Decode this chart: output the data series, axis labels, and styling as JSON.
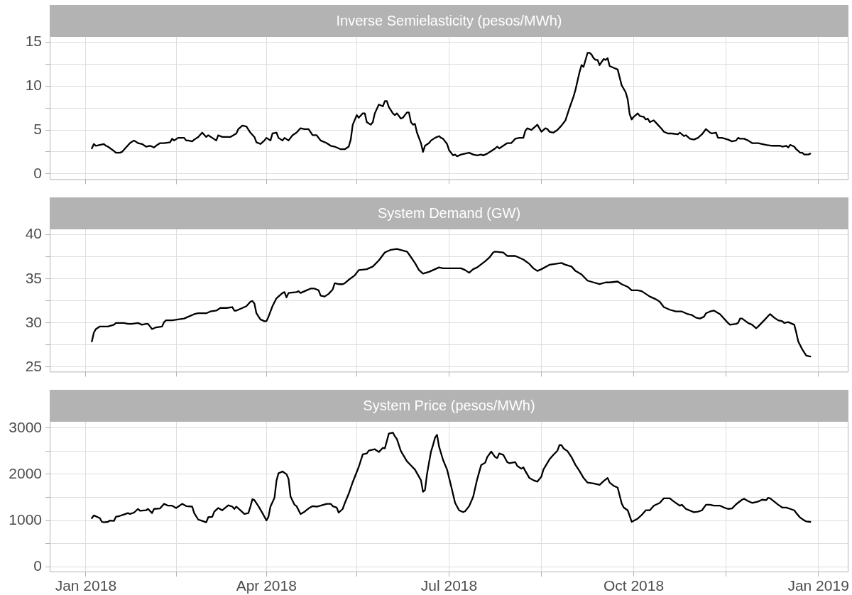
{
  "chart_data": [
    {
      "type": "line",
      "title": "Inverse Semielasticity (pesos/MWh)",
      "tick_labels": "y",
      "grid": true,
      "xlim": [
        "2017-12-14",
        "2019-01-16"
      ],
      "xticks": [
        {
          "value": "2018-01-01",
          "label": null
        },
        {
          "value": "2018-02-15",
          "label": null
        },
        {
          "value": "2018-04-01",
          "label": null
        },
        {
          "value": "2018-05-16",
          "label": null
        },
        {
          "value": "2018-07-01",
          "label": null
        },
        {
          "value": "2018-08-16",
          "label": null
        },
        {
          "value": "2018-10-01",
          "label": null
        },
        {
          "value": "2018-11-16",
          "label": null
        },
        {
          "value": "2019-01-01",
          "label": null
        }
      ],
      "ylim": [
        -0.7,
        15.7
      ],
      "yticks": [
        0,
        {
          "value": 2.5,
          "label": null
        },
        5,
        {
          "value": 7.5,
          "label": null
        },
        10,
        {
          "value": 12.5,
          "label": null
        },
        15
      ],
      "x": [
        "2018-01-04",
        "2018-01-05",
        "2018-01-06",
        "2018-01-08",
        "2018-01-10",
        "2018-01-11",
        "2018-01-12",
        "2018-01-15",
        "2018-01-16",
        "2018-01-18",
        "2018-01-19",
        "2018-01-21",
        "2018-01-23",
        "2018-01-25",
        "2018-01-27",
        "2018-01-29",
        "2018-01-31",
        "2018-02-02",
        "2018-02-04",
        "2018-02-05",
        "2018-02-07",
        "2018-02-09",
        "2018-02-12",
        "2018-02-13",
        "2018-02-14",
        "2018-02-16",
        "2018-02-19",
        "2018-02-20",
        "2018-02-21",
        "2018-02-23",
        "2018-02-24",
        "2018-02-26",
        "2018-02-28",
        "2018-03-02",
        "2018-03-03",
        "2018-03-05",
        "2018-03-07",
        "2018-03-08",
        "2018-03-10",
        "2018-03-12",
        "2018-03-14",
        "2018-03-17",
        "2018-03-18",
        "2018-03-20",
        "2018-03-22",
        "2018-03-24",
        "2018-03-26",
        "2018-03-27",
        "2018-03-29",
        "2018-03-31",
        "2018-04-01",
        "2018-04-03",
        "2018-04-04",
        "2018-04-06",
        "2018-04-07",
        "2018-04-09",
        "2018-04-10",
        "2018-04-12",
        "2018-04-14",
        "2018-04-16",
        "2018-04-18",
        "2018-04-20",
        "2018-04-22",
        "2018-04-24",
        "2018-04-26",
        "2018-04-28",
        "2018-05-01",
        "2018-05-03",
        "2018-05-05",
        "2018-05-08",
        "2018-05-10",
        "2018-05-12",
        "2018-05-13",
        "2018-05-14",
        "2018-05-16",
        "2018-05-17",
        "2018-05-19",
        "2018-05-20",
        "2018-05-21",
        "2018-05-23",
        "2018-05-24",
        "2018-05-25",
        "2018-05-27",
        "2018-05-29",
        "2018-05-30",
        "2018-05-31",
        "2018-06-01",
        "2018-06-03",
        "2018-06-04",
        "2018-06-05",
        "2018-06-07",
        "2018-06-08",
        "2018-06-10",
        "2018-06-11",
        "2018-06-12",
        "2018-06-13",
        "2018-06-14",
        "2018-06-15",
        "2018-06-17",
        "2018-06-18",
        "2018-06-19",
        "2018-06-21",
        "2018-06-22",
        "2018-06-24",
        "2018-06-26",
        "2018-06-27",
        "2018-06-28",
        "2018-06-30",
        "2018-07-01",
        "2018-07-03",
        "2018-07-04",
        "2018-07-05",
        "2018-07-07",
        "2018-07-09",
        "2018-07-11",
        "2018-07-13",
        "2018-07-15",
        "2018-07-17",
        "2018-07-18",
        "2018-07-20",
        "2018-07-22",
        "2018-07-24",
        "2018-07-25",
        "2018-07-26",
        "2018-07-28",
        "2018-07-30",
        "2018-08-01",
        "2018-08-03",
        "2018-08-05",
        "2018-08-07",
        "2018-08-08",
        "2018-08-09",
        "2018-08-11",
        "2018-08-13",
        "2018-08-14",
        "2018-08-15",
        "2018-08-16",
        "2018-08-18",
        "2018-08-19",
        "2018-08-20",
        "2018-08-22",
        "2018-08-24",
        "2018-08-26",
        "2018-08-28",
        "2018-08-30",
        "2018-09-01",
        "2018-09-02",
        "2018-09-04",
        "2018-09-05",
        "2018-09-06",
        "2018-09-08",
        "2018-09-09",
        "2018-09-10",
        "2018-09-11",
        "2018-09-12",
        "2018-09-13",
        "2018-09-14",
        "2018-09-16",
        "2018-09-17",
        "2018-09-18",
        "2018-09-19",
        "2018-09-21",
        "2018-09-23",
        "2018-09-25",
        "2018-09-27",
        "2018-09-28",
        "2018-09-29",
        "2018-09-30",
        "2018-10-01",
        "2018-10-03",
        "2018-10-04",
        "2018-10-06",
        "2018-10-07",
        "2018-10-08",
        "2018-10-09",
        "2018-10-11",
        "2018-10-13",
        "2018-10-15",
        "2018-10-16",
        "2018-10-18",
        "2018-10-20",
        "2018-10-23",
        "2018-10-24",
        "2018-10-26",
        "2018-10-27",
        "2018-10-29",
        "2018-10-31",
        "2018-11-02",
        "2018-11-04",
        "2018-11-06",
        "2018-11-08",
        "2018-11-09",
        "2018-11-11",
        "2018-11-12",
        "2018-11-14",
        "2018-11-17",
        "2018-11-19",
        "2018-11-21",
        "2018-11-22",
        "2018-11-23",
        "2018-11-25",
        "2018-11-27",
        "2018-11-29",
        "2018-12-02",
        "2018-12-04",
        "2018-12-06",
        "2018-12-09",
        "2018-12-11",
        "2018-12-13",
        "2018-12-14",
        "2018-12-16",
        "2018-12-17",
        "2018-12-18",
        "2018-12-20",
        "2018-12-21",
        "2018-12-23",
        "2018-12-24",
        "2018-12-25",
        "2018-12-27",
        "2018-12-28"
      ],
      "series": [
        {
          "color": "#000000",
          "values": [
            2.9,
            3.4,
            3.2,
            3.3,
            3.4,
            3.2,
            3.1,
            2.6,
            2.4,
            2.4,
            2.5,
            3.0,
            3.5,
            3.8,
            3.5,
            3.4,
            3.1,
            3.2,
            3.0,
            3.2,
            3.5,
            3.5,
            3.6,
            4.0,
            3.8,
            4.1,
            4.1,
            3.8,
            3.8,
            3.7,
            3.9,
            4.2,
            4.7,
            4.2,
            4.4,
            4.1,
            3.8,
            4.4,
            4.2,
            4.2,
            4.2,
            4.6,
            5.1,
            5.5,
            5.4,
            4.7,
            4.2,
            3.6,
            3.4,
            3.8,
            4.1,
            3.8,
            4.6,
            4.7,
            4.1,
            3.8,
            4.1,
            3.8,
            4.4,
            4.7,
            5.2,
            5.1,
            5.1,
            4.4,
            4.4,
            3.8,
            3.5,
            3.2,
            3.1,
            2.8,
            2.8,
            3.1,
            3.9,
            5.6,
            6.7,
            6.4,
            6.9,
            6.9,
            5.9,
            5.6,
            5.9,
            6.9,
            7.9,
            7.7,
            8.3,
            8.3,
            7.6,
            6.9,
            6.7,
            6.9,
            6.3,
            6.4,
            7.0,
            7.0,
            5.9,
            5.6,
            5.7,
            4.7,
            3.5,
            2.5,
            3.2,
            3.5,
            3.8,
            4.1,
            4.3,
            4.1,
            4.0,
            3.4,
            2.7,
            2.1,
            2.2,
            2.0,
            2.2,
            2.3,
            2.4,
            2.2,
            2.1,
            2.2,
            2.1,
            2.3,
            2.6,
            2.9,
            3.1,
            2.9,
            3.2,
            3.5,
            3.5,
            4.0,
            4.1,
            4.1,
            4.9,
            5.2,
            5.0,
            5.4,
            5.6,
            5.2,
            4.8,
            5.2,
            5.1,
            4.8,
            4.7,
            5.0,
            5.5,
            6.1,
            7.5,
            8.8,
            9.6,
            11.6,
            12.4,
            12.2,
            13.8,
            13.8,
            13.6,
            13.2,
            13.0,
            13.0,
            12.4,
            13.1,
            13.0,
            13.2,
            12.3,
            12.1,
            11.9,
            10.1,
            9.3,
            8.5,
            6.8,
            6.2,
            6.5,
            6.9,
            6.6,
            6.5,
            6.2,
            6.3,
            5.9,
            6.1,
            5.6,
            5.1,
            4.8,
            4.6,
            4.6,
            4.5,
            4.7,
            4.3,
            4.4,
            4.0,
            3.9,
            4.1,
            4.5,
            5.1,
            4.7,
            4.6,
            4.7,
            4.1,
            4.1,
            3.9,
            3.7,
            3.8,
            4.1,
            4.0,
            4.0,
            3.8,
            3.5,
            3.5,
            3.4,
            3.3,
            3.2,
            3.2,
            3.2,
            3.1,
            3.2,
            3.0,
            3.3,
            3.1,
            2.8,
            2.4,
            2.4,
            2.2,
            2.2,
            2.3
          ]
        }
      ]
    },
    {
      "type": "line",
      "title": "System Demand (GW)",
      "tick_labels": "y",
      "grid": true,
      "xlim": [
        "2017-12-14",
        "2019-01-16"
      ],
      "xticks": [
        {
          "value": "2018-01-01",
          "label": null
        },
        {
          "value": "2018-02-15",
          "label": null
        },
        {
          "value": "2018-04-01",
          "label": null
        },
        {
          "value": "2018-05-16",
          "label": null
        },
        {
          "value": "2018-07-01",
          "label": null
        },
        {
          "value": "2018-08-16",
          "label": null
        },
        {
          "value": "2018-10-01",
          "label": null
        },
        {
          "value": "2018-11-16",
          "label": null
        },
        {
          "value": "2019-01-01",
          "label": null
        }
      ],
      "ylim": [
        24.4,
        40.7
      ],
      "yticks": [
        25,
        {
          "value": 27.5,
          "label": null
        },
        30,
        {
          "value": 32.5,
          "label": null
        },
        35,
        {
          "value": 37.5,
          "label": null
        },
        40
      ],
      "x": [
        "2018-01-04",
        "2018-01-05",
        "2018-01-06",
        "2018-01-08",
        "2018-01-10",
        "2018-01-12",
        "2018-01-15",
        "2018-01-16",
        "2018-01-18",
        "2018-01-20",
        "2018-01-22",
        "2018-01-24",
        "2018-01-27",
        "2018-01-29",
        "2018-01-31",
        "2018-02-01",
        "2018-02-02",
        "2018-02-03",
        "2018-02-05",
        "2018-02-08",
        "2018-02-09",
        "2018-02-10",
        "2018-02-13",
        "2018-02-16",
        "2018-02-19",
        "2018-02-21",
        "2018-02-24",
        "2018-02-26",
        "2018-03-02",
        "2018-03-04",
        "2018-03-07",
        "2018-03-09",
        "2018-03-12",
        "2018-03-15",
        "2018-03-16",
        "2018-03-17",
        "2018-03-20",
        "2018-03-22",
        "2018-03-24",
        "2018-03-25",
        "2018-03-26",
        "2018-03-27",
        "2018-03-29",
        "2018-03-31",
        "2018-04-01",
        "2018-04-02",
        "2018-04-04",
        "2018-04-06",
        "2018-04-09",
        "2018-04-10",
        "2018-04-11",
        "2018-04-12",
        "2018-04-16",
        "2018-04-17",
        "2018-04-18",
        "2018-04-21",
        "2018-04-23",
        "2018-04-25",
        "2018-04-27",
        "2018-04-28",
        "2018-04-30",
        "2018-05-02",
        "2018-05-04",
        "2018-05-05",
        "2018-05-07",
        "2018-05-09",
        "2018-05-10",
        "2018-05-12",
        "2018-05-15",
        "2018-05-17",
        "2018-05-21",
        "2018-05-24",
        "2018-05-27",
        "2018-05-30",
        "2018-06-02",
        "2018-06-05",
        "2018-06-10",
        "2018-06-11",
        "2018-06-14",
        "2018-06-16",
        "2018-06-18",
        "2018-06-21",
        "2018-06-24",
        "2018-06-26",
        "2018-06-28",
        "2018-07-01",
        "2018-07-04",
        "2018-07-07",
        "2018-07-09",
        "2018-07-11",
        "2018-07-13",
        "2018-07-15",
        "2018-07-19",
        "2018-07-21",
        "2018-07-23",
        "2018-07-24",
        "2018-07-28",
        "2018-07-30",
        "2018-08-03",
        "2018-08-07",
        "2018-08-10",
        "2018-08-12",
        "2018-08-14",
        "2018-08-16",
        "2018-08-20",
        "2018-08-23",
        "2018-08-26",
        "2018-08-28",
        "2018-08-31",
        "2018-09-02",
        "2018-09-05",
        "2018-09-08",
        "2018-09-11",
        "2018-09-14",
        "2018-09-17",
        "2018-09-19",
        "2018-09-23",
        "2018-09-25",
        "2018-09-28",
        "2018-09-30",
        "2018-10-03",
        "2018-10-05",
        "2018-10-07",
        "2018-10-09",
        "2018-10-12",
        "2018-10-14",
        "2018-10-16",
        "2018-10-19",
        "2018-10-22",
        "2018-10-25",
        "2018-10-28",
        "2018-10-30",
        "2018-11-01",
        "2018-11-03",
        "2018-11-05",
        "2018-11-06",
        "2018-11-08",
        "2018-11-10",
        "2018-11-13",
        "2018-11-15",
        "2018-11-17",
        "2018-11-18",
        "2018-11-21",
        "2018-11-22",
        "2018-11-23",
        "2018-11-24",
        "2018-11-27",
        "2018-11-29",
        "2018-12-01",
        "2018-12-02",
        "2018-12-05",
        "2018-12-07",
        "2018-12-08",
        "2018-12-10",
        "2018-12-12",
        "2018-12-14",
        "2018-12-15",
        "2018-12-17",
        "2018-12-20",
        "2018-12-21",
        "2018-12-22",
        "2018-12-24",
        "2018-12-26",
        "2018-12-28"
      ],
      "series": [
        {
          "color": "#000000",
          "values": [
            27.9,
            28.9,
            29.3,
            29.6,
            29.6,
            29.6,
            29.8,
            30.0,
            30.0,
            30.0,
            29.9,
            29.9,
            30.0,
            29.8,
            29.9,
            29.9,
            29.6,
            29.3,
            29.5,
            29.6,
            30.1,
            30.3,
            30.3,
            30.4,
            30.5,
            30.7,
            31.0,
            31.1,
            31.1,
            31.3,
            31.4,
            31.7,
            31.7,
            31.8,
            31.4,
            31.4,
            31.7,
            31.9,
            32.4,
            32.5,
            32.2,
            31.1,
            30.4,
            30.2,
            30.2,
            30.7,
            31.9,
            32.8,
            33.4,
            33.5,
            32.9,
            33.4,
            33.5,
            33.6,
            33.4,
            33.7,
            33.9,
            33.9,
            33.7,
            33.1,
            33.0,
            33.3,
            33.8,
            34.5,
            34.4,
            34.4,
            34.5,
            34.9,
            35.4,
            36.0,
            36.1,
            36.4,
            37.1,
            38.0,
            38.3,
            38.4,
            38.1,
            37.8,
            36.8,
            36.0,
            35.6,
            35.8,
            36.1,
            36.3,
            36.2,
            36.2,
            36.2,
            36.2,
            36.0,
            35.7,
            36.1,
            36.3,
            37.0,
            37.4,
            38.0,
            38.1,
            38.0,
            37.6,
            37.6,
            37.2,
            36.7,
            36.2,
            35.9,
            36.1,
            36.6,
            36.7,
            36.8,
            36.6,
            36.4,
            35.9,
            35.5,
            34.8,
            34.6,
            34.4,
            34.6,
            34.6,
            34.7,
            34.4,
            34.1,
            33.7,
            33.7,
            33.6,
            33.3,
            33.0,
            32.7,
            32.4,
            31.8,
            31.5,
            31.3,
            31.3,
            31.0,
            30.9,
            30.6,
            30.5,
            30.7,
            31.1,
            31.3,
            31.4,
            31.0,
            30.5,
            30.0,
            29.8,
            29.9,
            30.0,
            30.5,
            30.5,
            30.0,
            29.8,
            29.4,
            29.6,
            30.3,
            30.8,
            31.0,
            30.6,
            30.3,
            30.2,
            30.0,
            30.1,
            29.8,
            28.9,
            27.9,
            27.0,
            26.3,
            26.2
          ]
        }
      ]
    },
    {
      "type": "line",
      "title": "System Price (pesos/MWh)",
      "grid": true,
      "xlim": [
        "2017-12-14",
        "2019-01-16"
      ],
      "xticks": [
        {
          "value": "2018-01-01",
          "label": "Jan 2018"
        },
        {
          "value": "2018-02-15",
          "label": null
        },
        {
          "value": "2018-04-01",
          "label": "Apr 2018"
        },
        {
          "value": "2018-05-16",
          "label": null
        },
        {
          "value": "2018-07-01",
          "label": "Jul 2018"
        },
        {
          "value": "2018-08-16",
          "label": null
        },
        {
          "value": "2018-10-01",
          "label": "Oct 2018"
        },
        {
          "value": "2018-11-16",
          "label": null
        },
        {
          "value": "2019-01-01",
          "label": "Jan 2019"
        }
      ],
      "ylim": [
        -120,
        3150
      ],
      "yticks": [
        0,
        {
          "value": 500,
          "label": null
        },
        1000,
        {
          "value": 1500,
          "label": null
        },
        2000,
        {
          "value": 2500,
          "label": null
        },
        3000
      ],
      "x": [
        "2018-01-04",
        "2018-01-05",
        "2018-01-07",
        "2018-01-08",
        "2018-01-09",
        "2018-01-10",
        "2018-01-12",
        "2018-01-13",
        "2018-01-15",
        "2018-01-16",
        "2018-01-18",
        "2018-01-20",
        "2018-01-22",
        "2018-01-23",
        "2018-01-25",
        "2018-01-27",
        "2018-01-28",
        "2018-01-31",
        "2018-02-01",
        "2018-02-03",
        "2018-02-04",
        "2018-02-07",
        "2018-02-09",
        "2018-02-11",
        "2018-02-13",
        "2018-02-15",
        "2018-02-18",
        "2018-02-20",
        "2018-02-23",
        "2018-02-24",
        "2018-02-26",
        "2018-02-28",
        "2018-03-02",
        "2018-03-03",
        "2018-03-05",
        "2018-03-06",
        "2018-03-08",
        "2018-03-10",
        "2018-03-13",
        "2018-03-15",
        "2018-03-16",
        "2018-03-17",
        "2018-03-19",
        "2018-03-21",
        "2018-03-23",
        "2018-03-24",
        "2018-03-25",
        "2018-03-26",
        "2018-03-28",
        "2018-03-30",
        "2018-04-01",
        "2018-04-02",
        "2018-04-03",
        "2018-04-05",
        "2018-04-06",
        "2018-04-07",
        "2018-04-09",
        "2018-04-11",
        "2018-04-12",
        "2018-04-13",
        "2018-04-15",
        "2018-04-16",
        "2018-04-18",
        "2018-04-20",
        "2018-04-22",
        "2018-04-24",
        "2018-04-26",
        "2018-04-28",
        "2018-05-01",
        "2018-05-03",
        "2018-05-04",
        "2018-05-06",
        "2018-05-07",
        "2018-05-09",
        "2018-05-10",
        "2018-05-12",
        "2018-05-14",
        "2018-05-17",
        "2018-05-19",
        "2018-05-21",
        "2018-05-22",
        "2018-05-25",
        "2018-05-27",
        "2018-05-29",
        "2018-05-30",
        "2018-06-01",
        "2018-06-03",
        "2018-06-04",
        "2018-06-05",
        "2018-06-07",
        "2018-06-10",
        "2018-06-12",
        "2018-06-14",
        "2018-06-17",
        "2018-06-18",
        "2018-06-19",
        "2018-06-20",
        "2018-06-21",
        "2018-06-22",
        "2018-06-23",
        "2018-06-24",
        "2018-06-25",
        "2018-06-26",
        "2018-06-28",
        "2018-06-30",
        "2018-07-02",
        "2018-07-04",
        "2018-07-06",
        "2018-07-08",
        "2018-07-09",
        "2018-07-11",
        "2018-07-13",
        "2018-07-15",
        "2018-07-17",
        "2018-07-19",
        "2018-07-20",
        "2018-07-22",
        "2018-07-24",
        "2018-07-25",
        "2018-07-26",
        "2018-07-28",
        "2018-07-30",
        "2018-07-31",
        "2018-08-03",
        "2018-08-04",
        "2018-08-06",
        "2018-08-07",
        "2018-08-08",
        "2018-08-10",
        "2018-08-12",
        "2018-08-14",
        "2018-08-16",
        "2018-08-17",
        "2018-08-20",
        "2018-08-22",
        "2018-08-24",
        "2018-08-25",
        "2018-08-26",
        "2018-08-27",
        "2018-08-29",
        "2018-08-31",
        "2018-09-02",
        "2018-09-04",
        "2018-09-06",
        "2018-09-08",
        "2018-09-11",
        "2018-09-14",
        "2018-09-16",
        "2018-09-18",
        "2018-09-19",
        "2018-09-21",
        "2018-09-23",
        "2018-09-25",
        "2018-09-26",
        "2018-09-28",
        "2018-09-29",
        "2018-09-30",
        "2018-10-03",
        "2018-10-05",
        "2018-10-07",
        "2018-10-09",
        "2018-10-11",
        "2018-10-14",
        "2018-10-16",
        "2018-10-19",
        "2018-10-21",
        "2018-10-24",
        "2018-10-25",
        "2018-10-27",
        "2018-10-31",
        "2018-11-02",
        "2018-11-04",
        "2018-11-06",
        "2018-11-08",
        "2018-11-10",
        "2018-11-13",
        "2018-11-15",
        "2018-11-17",
        "2018-11-19",
        "2018-11-21",
        "2018-11-24",
        "2018-11-25",
        "2018-11-27",
        "2018-11-29",
        "2018-12-02",
        "2018-12-04",
        "2018-12-06",
        "2018-12-07",
        "2018-12-08",
        "2018-12-10",
        "2018-12-12",
        "2018-12-14",
        "2018-12-16",
        "2018-12-18",
        "2018-12-20",
        "2018-12-21",
        "2018-12-23",
        "2018-12-25",
        "2018-12-26",
        "2018-12-28"
      ],
      "series": [
        {
          "color": "#000000",
          "values": [
            1050,
            1110,
            1070,
            1050,
            970,
            960,
            970,
            1000,
            990,
            1080,
            1100,
            1130,
            1160,
            1140,
            1170,
            1250,
            1210,
            1220,
            1250,
            1160,
            1250,
            1260,
            1360,
            1320,
            1320,
            1270,
            1360,
            1310,
            1300,
            1160,
            1020,
            990,
            960,
            1070,
            1080,
            1190,
            1270,
            1220,
            1330,
            1300,
            1250,
            1300,
            1220,
            1140,
            1160,
            1300,
            1460,
            1440,
            1310,
            1160,
            1000,
            1080,
            1300,
            1490,
            1860,
            2020,
            2060,
            2000,
            1900,
            1520,
            1340,
            1310,
            1140,
            1190,
            1260,
            1310,
            1300,
            1320,
            1360,
            1360,
            1310,
            1280,
            1170,
            1250,
            1370,
            1580,
            1830,
            2160,
            2430,
            2450,
            2510,
            2540,
            2480,
            2570,
            2560,
            2880,
            2900,
            2820,
            2760,
            2500,
            2280,
            2190,
            2100,
            1870,
            1620,
            1660,
            2000,
            2250,
            2490,
            2630,
            2790,
            2850,
            2600,
            2310,
            2100,
            1750,
            1380,
            1220,
            1180,
            1200,
            1310,
            1510,
            1890,
            2200,
            2250,
            2370,
            2490,
            2370,
            2350,
            2450,
            2420,
            2260,
            2240,
            2260,
            2180,
            2120,
            2150,
            2070,
            1920,
            1870,
            1840,
            1950,
            2100,
            2320,
            2420,
            2510,
            2630,
            2630,
            2560,
            2500,
            2370,
            2200,
            2070,
            1920,
            1820,
            1800,
            1770,
            1850,
            1920,
            1820,
            1750,
            1710,
            1370,
            1280,
            1220,
            1100,
            970,
            1040,
            1120,
            1220,
            1220,
            1320,
            1380,
            1480,
            1480,
            1410,
            1320,
            1340,
            1250,
            1180,
            1190,
            1220,
            1340,
            1340,
            1320,
            1320,
            1280,
            1250,
            1260,
            1350,
            1450,
            1470,
            1420,
            1380,
            1410,
            1450,
            1440,
            1490,
            1480,
            1410,
            1340,
            1280,
            1280,
            1250,
            1220,
            1160,
            1060,
            1000,
            980,
            970
          ]
        }
      ]
    }
  ]
}
